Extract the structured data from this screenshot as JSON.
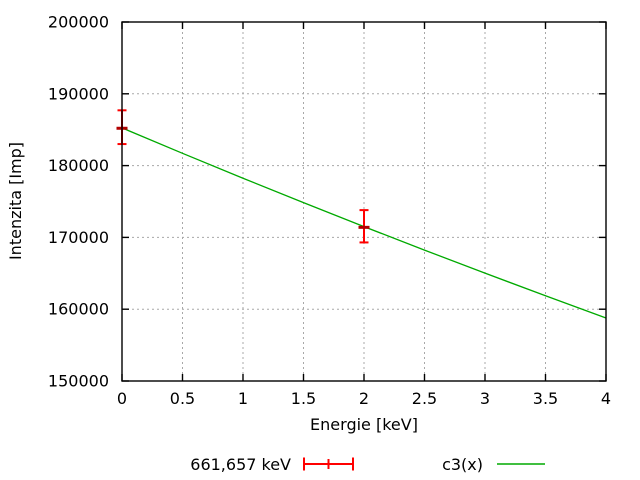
{
  "window": {
    "background": "#ffffff"
  },
  "chart_data": {
    "type": "line",
    "title": "",
    "xlabel": "Energie [keV]",
    "ylabel": "Intenzita [Imp]",
    "xlim": [
      0,
      4
    ],
    "ylim": [
      150000,
      200000
    ],
    "xtick_values": [
      0,
      0.5,
      1,
      1.5,
      2,
      2.5,
      3,
      3.5,
      4
    ],
    "xtick_labels": [
      "0",
      "0.5",
      "1",
      "1.5",
      "2",
      "2.5",
      "3",
      "3.5",
      "4"
    ],
    "ytick_values": [
      150000,
      160000,
      170000,
      180000,
      190000,
      200000
    ],
    "ytick_labels": [
      "150000",
      "160000",
      "170000",
      "180000",
      "190000",
      "200000"
    ],
    "grid": true,
    "grid_color": "#a8a8a8",
    "axis_color": "#000000",
    "text_color": "#000000",
    "legend_position": "bottom-center",
    "series": [
      {
        "name": "661,657 keV",
        "type": "yerrorbars",
        "color": "#ff0000",
        "center_tick_color": "#b30000",
        "points": [
          {
            "x": 0,
            "y": 185200,
            "y_low": 183000,
            "y_high": 187700
          },
          {
            "x": 2,
            "y": 171400,
            "y_low": 169300,
            "y_high": 173800
          }
        ]
      },
      {
        "name": "c3(x)",
        "type": "line",
        "color": "#00aa00",
        "x": [
          0,
          0.5,
          1,
          1.5,
          2,
          2.5,
          3,
          3.5,
          4
        ],
        "y": [
          185250,
          181710,
          178240,
          174840,
          171500,
          168230,
          165020,
          161870,
          158780
        ]
      }
    ]
  }
}
